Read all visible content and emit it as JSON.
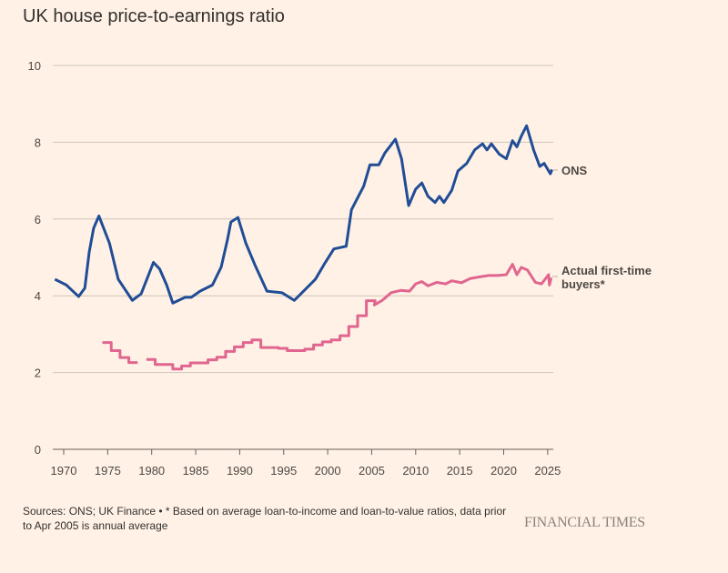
{
  "chart_data": {
    "type": "line",
    "title": "UK house price-to-earnings ratio",
    "xlabel": "",
    "ylabel": "",
    "xlim": [
      1968.8,
      2026
    ],
    "ylim": [
      0,
      10
    ],
    "grid": true,
    "y_ticks": [
      "0",
      "2",
      "4",
      "6",
      "8",
      "10"
    ],
    "x_ticks": [
      "1970",
      "1975",
      "1980",
      "1985",
      "1990",
      "1995",
      "2000",
      "2005",
      "2010",
      "2015",
      "2020",
      "2025"
    ],
    "legend": "direct labels at right",
    "series": [
      {
        "name": "ONS",
        "color": "#204D96",
        "style": "line",
        "points": [
          [
            1969.0,
            4.43
          ],
          [
            1970.3,
            4.28
          ],
          [
            1971.7,
            3.98
          ],
          [
            1972.4,
            4.2
          ],
          [
            1972.9,
            5.14
          ],
          [
            1973.4,
            5.76
          ],
          [
            1974.0,
            6.08
          ],
          [
            1975.2,
            5.37
          ],
          [
            1976.2,
            4.43
          ],
          [
            1977.8,
            3.88
          ],
          [
            1978.8,
            4.05
          ],
          [
            1980.2,
            4.87
          ],
          [
            1980.9,
            4.7
          ],
          [
            1981.7,
            4.28
          ],
          [
            1982.4,
            3.81
          ],
          [
            1983.8,
            3.96
          ],
          [
            1984.5,
            3.96
          ],
          [
            1985.5,
            4.12
          ],
          [
            1986.9,
            4.28
          ],
          [
            1987.9,
            4.75
          ],
          [
            1988.6,
            5.45
          ],
          [
            1989.0,
            5.92
          ],
          [
            1989.8,
            6.04
          ],
          [
            1990.7,
            5.37
          ],
          [
            1991.7,
            4.82
          ],
          [
            1993.1,
            4.12
          ],
          [
            1994.8,
            4.08
          ],
          [
            1996.2,
            3.88
          ],
          [
            1996.9,
            4.04
          ],
          [
            1998.6,
            4.43
          ],
          [
            1999.6,
            4.82
          ],
          [
            2000.7,
            5.22
          ],
          [
            2002.1,
            5.29
          ],
          [
            2002.7,
            6.24
          ],
          [
            2003.4,
            6.55
          ],
          [
            2004.1,
            6.86
          ],
          [
            2004.8,
            7.41
          ],
          [
            2005.8,
            7.41
          ],
          [
            2006.5,
            7.72
          ],
          [
            2007.7,
            8.08
          ],
          [
            2008.4,
            7.56
          ],
          [
            2009.2,
            6.35
          ],
          [
            2010.0,
            6.78
          ],
          [
            2010.7,
            6.94
          ],
          [
            2011.4,
            6.59
          ],
          [
            2012.2,
            6.43
          ],
          [
            2012.7,
            6.59
          ],
          [
            2013.2,
            6.43
          ],
          [
            2014.1,
            6.75
          ],
          [
            2014.8,
            7.25
          ],
          [
            2015.8,
            7.45
          ],
          [
            2016.7,
            7.8
          ],
          [
            2017.6,
            7.96
          ],
          [
            2018.1,
            7.8
          ],
          [
            2018.6,
            7.96
          ],
          [
            2019.5,
            7.69
          ],
          [
            2020.3,
            7.57
          ],
          [
            2021.0,
            8.04
          ],
          [
            2021.5,
            7.88
          ],
          [
            2022.0,
            8.16
          ],
          [
            2022.6,
            8.43
          ],
          [
            2023.4,
            7.8
          ],
          [
            2024.1,
            7.37
          ],
          [
            2024.6,
            7.45
          ],
          [
            2025.3,
            7.18
          ],
          [
            2025.5,
            7.29
          ]
        ]
      },
      {
        "name": "Actual first-time buyers*",
        "color": "#E0668F",
        "style": "annual steps before Apr 2005, then line",
        "annual": [
          [
            1974,
            2.78
          ],
          [
            1975,
            2.57
          ],
          [
            1976,
            2.39
          ],
          [
            1977,
            2.26
          ],
          [
            1978,
            null
          ],
          [
            1979,
            2.34
          ],
          [
            1980,
            2.21
          ],
          [
            1981,
            2.21
          ],
          [
            1982,
            2.09
          ],
          [
            1983,
            2.17
          ],
          [
            1984,
            2.25
          ],
          [
            1985,
            2.25
          ],
          [
            1986,
            2.33
          ],
          [
            1987,
            2.4
          ],
          [
            1988,
            2.55
          ],
          [
            1989,
            2.67
          ],
          [
            1990,
            2.78
          ],
          [
            1991,
            2.85
          ],
          [
            1992,
            2.65
          ],
          [
            1993,
            2.65
          ],
          [
            1994,
            2.63
          ],
          [
            1995,
            2.57
          ],
          [
            1996,
            2.57
          ],
          [
            1997,
            2.61
          ],
          [
            1998,
            2.72
          ],
          [
            1999,
            2.8
          ],
          [
            2000,
            2.85
          ],
          [
            2001,
            2.96
          ],
          [
            2002,
            3.2
          ],
          [
            2003,
            3.48
          ],
          [
            2004,
            3.87
          ]
        ],
        "points": [
          [
            2005.3,
            3.76
          ],
          [
            2006.2,
            3.88
          ],
          [
            2007.2,
            4.08
          ],
          [
            2008.3,
            4.14
          ],
          [
            2009.3,
            4.12
          ],
          [
            2010.0,
            4.31
          ],
          [
            2010.7,
            4.37
          ],
          [
            2011.4,
            4.26
          ],
          [
            2012.4,
            4.35
          ],
          [
            2013.4,
            4.31
          ],
          [
            2014.1,
            4.39
          ],
          [
            2015.2,
            4.34
          ],
          [
            2016.2,
            4.45
          ],
          [
            2017.2,
            4.49
          ],
          [
            2018.3,
            4.53
          ],
          [
            2019.3,
            4.53
          ],
          [
            2020.3,
            4.55
          ],
          [
            2021.0,
            4.82
          ],
          [
            2021.5,
            4.55
          ],
          [
            2022.0,
            4.74
          ],
          [
            2022.7,
            4.67
          ],
          [
            2023.6,
            4.35
          ],
          [
            2024.3,
            4.31
          ],
          [
            2025.1,
            4.55
          ],
          [
            2025.2,
            4.28
          ],
          [
            2025.4,
            4.47
          ]
        ]
      }
    ]
  },
  "series_labels": {
    "ons": "ONS",
    "ftb_line1": "Actual first-time",
    "ftb_line2": "buyers*"
  },
  "footer": {
    "source": "Sources: ONS; UK Finance • * Based on average loan-to-income and loan-to-value ratios, data prior to Apr 2005 is annual average",
    "logo": "FINANCIAL TIMES"
  }
}
